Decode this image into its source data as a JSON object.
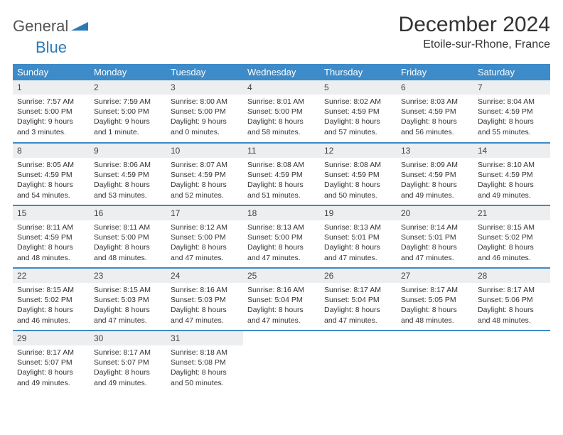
{
  "logo": {
    "part1": "General",
    "part2": "Blue"
  },
  "title": "December 2024",
  "location": "Etoile-sur-Rhone, France",
  "colors": {
    "header_bg": "#3d8bc8",
    "header_text": "#ffffff",
    "daynum_bg": "#eceeef",
    "border": "#3d8bc8",
    "logo_gray": "#555555",
    "logo_blue": "#2a7ab8",
    "text": "#333333",
    "background": "#ffffff"
  },
  "typography": {
    "title_fontsize": 30,
    "location_fontsize": 16,
    "dayheader_fontsize": 13,
    "daynum_fontsize": 12,
    "body_fontsize": 10.5
  },
  "day_headers": [
    "Sunday",
    "Monday",
    "Tuesday",
    "Wednesday",
    "Thursday",
    "Friday",
    "Saturday"
  ],
  "weeks": [
    [
      {
        "num": "1",
        "sunrise": "Sunrise: 7:57 AM",
        "sunset": "Sunset: 5:00 PM",
        "daylight": "Daylight: 9 hours and 3 minutes."
      },
      {
        "num": "2",
        "sunrise": "Sunrise: 7:59 AM",
        "sunset": "Sunset: 5:00 PM",
        "daylight": "Daylight: 9 hours and 1 minute."
      },
      {
        "num": "3",
        "sunrise": "Sunrise: 8:00 AM",
        "sunset": "Sunset: 5:00 PM",
        "daylight": "Daylight: 9 hours and 0 minutes."
      },
      {
        "num": "4",
        "sunrise": "Sunrise: 8:01 AM",
        "sunset": "Sunset: 5:00 PM",
        "daylight": "Daylight: 8 hours and 58 minutes."
      },
      {
        "num": "5",
        "sunrise": "Sunrise: 8:02 AM",
        "sunset": "Sunset: 4:59 PM",
        "daylight": "Daylight: 8 hours and 57 minutes."
      },
      {
        "num": "6",
        "sunrise": "Sunrise: 8:03 AM",
        "sunset": "Sunset: 4:59 PM",
        "daylight": "Daylight: 8 hours and 56 minutes."
      },
      {
        "num": "7",
        "sunrise": "Sunrise: 8:04 AM",
        "sunset": "Sunset: 4:59 PM",
        "daylight": "Daylight: 8 hours and 55 minutes."
      }
    ],
    [
      {
        "num": "8",
        "sunrise": "Sunrise: 8:05 AM",
        "sunset": "Sunset: 4:59 PM",
        "daylight": "Daylight: 8 hours and 54 minutes."
      },
      {
        "num": "9",
        "sunrise": "Sunrise: 8:06 AM",
        "sunset": "Sunset: 4:59 PM",
        "daylight": "Daylight: 8 hours and 53 minutes."
      },
      {
        "num": "10",
        "sunrise": "Sunrise: 8:07 AM",
        "sunset": "Sunset: 4:59 PM",
        "daylight": "Daylight: 8 hours and 52 minutes."
      },
      {
        "num": "11",
        "sunrise": "Sunrise: 8:08 AM",
        "sunset": "Sunset: 4:59 PM",
        "daylight": "Daylight: 8 hours and 51 minutes."
      },
      {
        "num": "12",
        "sunrise": "Sunrise: 8:08 AM",
        "sunset": "Sunset: 4:59 PM",
        "daylight": "Daylight: 8 hours and 50 minutes."
      },
      {
        "num": "13",
        "sunrise": "Sunrise: 8:09 AM",
        "sunset": "Sunset: 4:59 PM",
        "daylight": "Daylight: 8 hours and 49 minutes."
      },
      {
        "num": "14",
        "sunrise": "Sunrise: 8:10 AM",
        "sunset": "Sunset: 4:59 PM",
        "daylight": "Daylight: 8 hours and 49 minutes."
      }
    ],
    [
      {
        "num": "15",
        "sunrise": "Sunrise: 8:11 AM",
        "sunset": "Sunset: 4:59 PM",
        "daylight": "Daylight: 8 hours and 48 minutes."
      },
      {
        "num": "16",
        "sunrise": "Sunrise: 8:11 AM",
        "sunset": "Sunset: 5:00 PM",
        "daylight": "Daylight: 8 hours and 48 minutes."
      },
      {
        "num": "17",
        "sunrise": "Sunrise: 8:12 AM",
        "sunset": "Sunset: 5:00 PM",
        "daylight": "Daylight: 8 hours and 47 minutes."
      },
      {
        "num": "18",
        "sunrise": "Sunrise: 8:13 AM",
        "sunset": "Sunset: 5:00 PM",
        "daylight": "Daylight: 8 hours and 47 minutes."
      },
      {
        "num": "19",
        "sunrise": "Sunrise: 8:13 AM",
        "sunset": "Sunset: 5:01 PM",
        "daylight": "Daylight: 8 hours and 47 minutes."
      },
      {
        "num": "20",
        "sunrise": "Sunrise: 8:14 AM",
        "sunset": "Sunset: 5:01 PM",
        "daylight": "Daylight: 8 hours and 47 minutes."
      },
      {
        "num": "21",
        "sunrise": "Sunrise: 8:15 AM",
        "sunset": "Sunset: 5:02 PM",
        "daylight": "Daylight: 8 hours and 46 minutes."
      }
    ],
    [
      {
        "num": "22",
        "sunrise": "Sunrise: 8:15 AM",
        "sunset": "Sunset: 5:02 PM",
        "daylight": "Daylight: 8 hours and 46 minutes."
      },
      {
        "num": "23",
        "sunrise": "Sunrise: 8:15 AM",
        "sunset": "Sunset: 5:03 PM",
        "daylight": "Daylight: 8 hours and 47 minutes."
      },
      {
        "num": "24",
        "sunrise": "Sunrise: 8:16 AM",
        "sunset": "Sunset: 5:03 PM",
        "daylight": "Daylight: 8 hours and 47 minutes."
      },
      {
        "num": "25",
        "sunrise": "Sunrise: 8:16 AM",
        "sunset": "Sunset: 5:04 PM",
        "daylight": "Daylight: 8 hours and 47 minutes."
      },
      {
        "num": "26",
        "sunrise": "Sunrise: 8:17 AM",
        "sunset": "Sunset: 5:04 PM",
        "daylight": "Daylight: 8 hours and 47 minutes."
      },
      {
        "num": "27",
        "sunrise": "Sunrise: 8:17 AM",
        "sunset": "Sunset: 5:05 PM",
        "daylight": "Daylight: 8 hours and 48 minutes."
      },
      {
        "num": "28",
        "sunrise": "Sunrise: 8:17 AM",
        "sunset": "Sunset: 5:06 PM",
        "daylight": "Daylight: 8 hours and 48 minutes."
      }
    ],
    [
      {
        "num": "29",
        "sunrise": "Sunrise: 8:17 AM",
        "sunset": "Sunset: 5:07 PM",
        "daylight": "Daylight: 8 hours and 49 minutes."
      },
      {
        "num": "30",
        "sunrise": "Sunrise: 8:17 AM",
        "sunset": "Sunset: 5:07 PM",
        "daylight": "Daylight: 8 hours and 49 minutes."
      },
      {
        "num": "31",
        "sunrise": "Sunrise: 8:18 AM",
        "sunset": "Sunset: 5:08 PM",
        "daylight": "Daylight: 8 hours and 50 minutes."
      },
      null,
      null,
      null,
      null
    ]
  ]
}
